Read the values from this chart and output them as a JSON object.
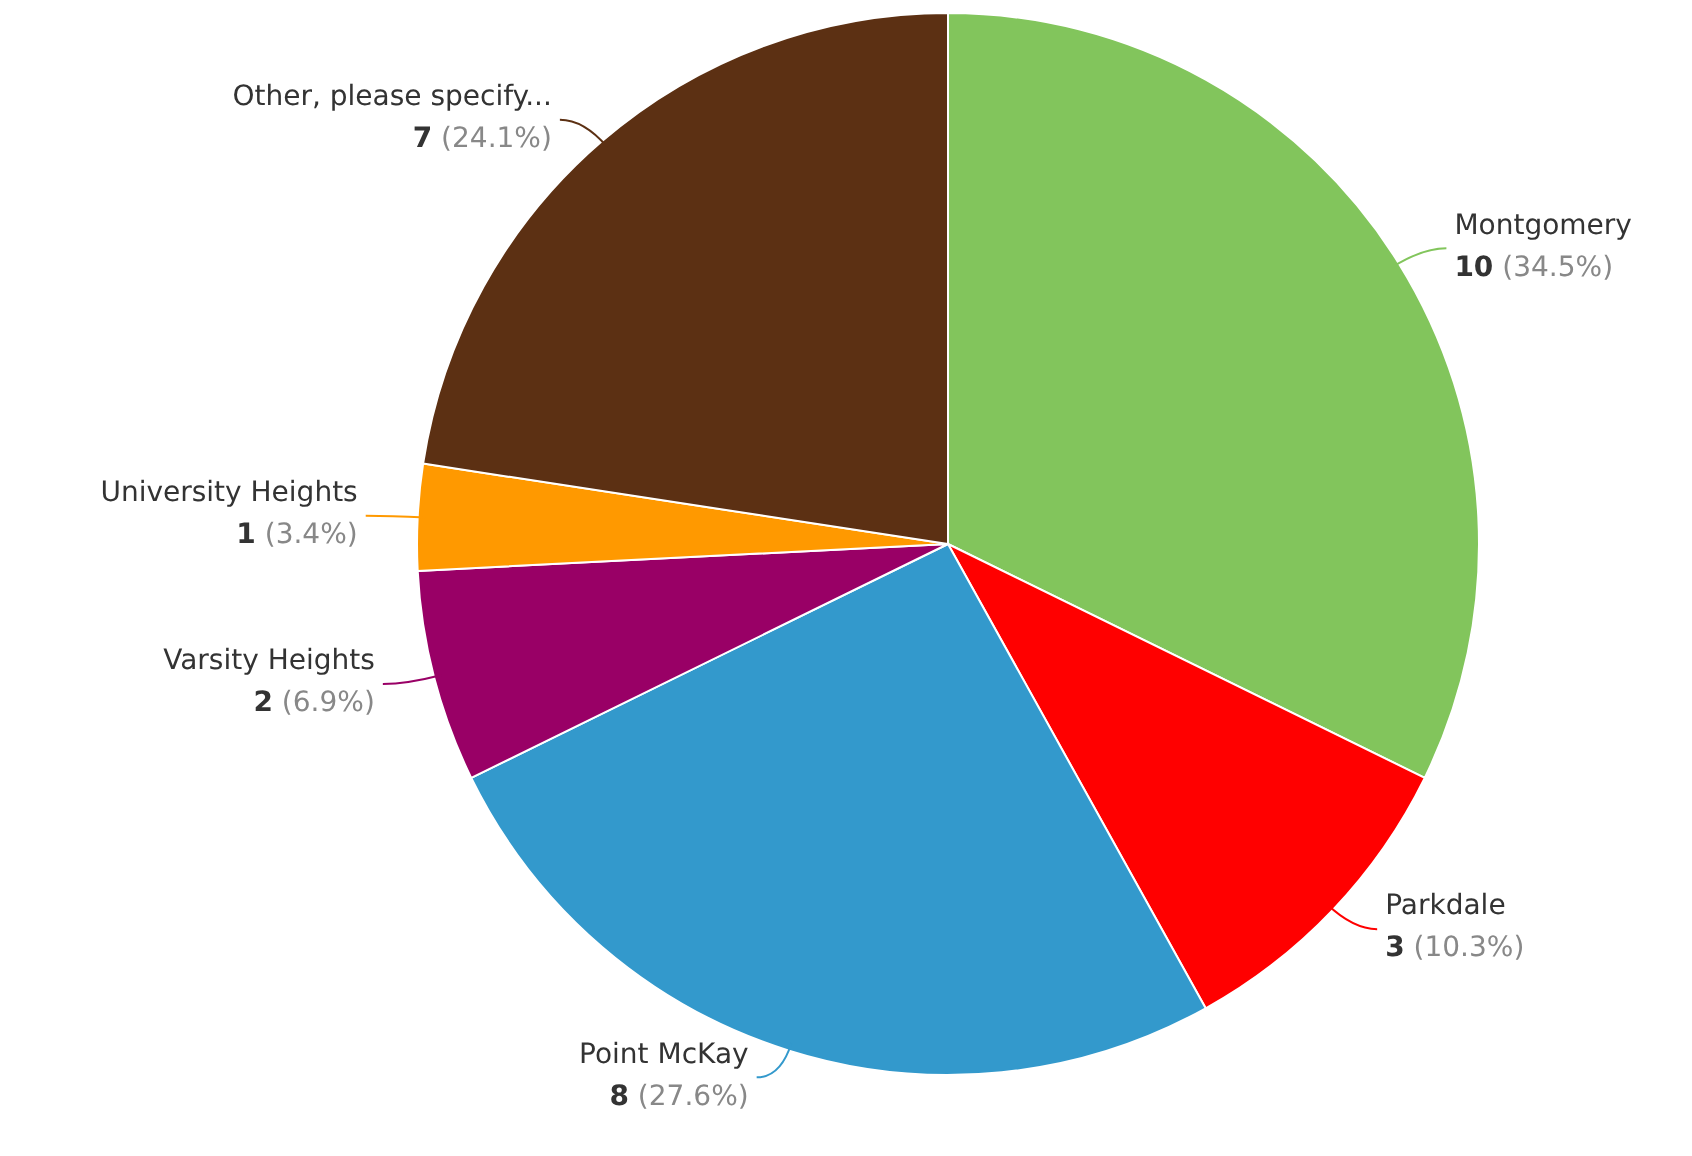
{
  "chart_data": {
    "type": "pie",
    "categories": [
      "Montgomery",
      "Parkdale",
      "Point McKay",
      "Varsity Heights",
      "University Heights",
      "Other, please specify..."
    ],
    "values": [
      10,
      3,
      8,
      2,
      1,
      7
    ],
    "colors": [
      "#82c55c",
      "#ff0000",
      "#3399cc",
      "#990066",
      "#ff9900",
      "#5c3013"
    ],
    "value_labels": [
      "10 (34.5%)",
      "3 (10.3%)",
      "8 (27.6%)",
      "2 (6.9%)",
      "1 (3.4%)",
      "7 (24.1%)"
    ],
    "legend": false
  }
}
